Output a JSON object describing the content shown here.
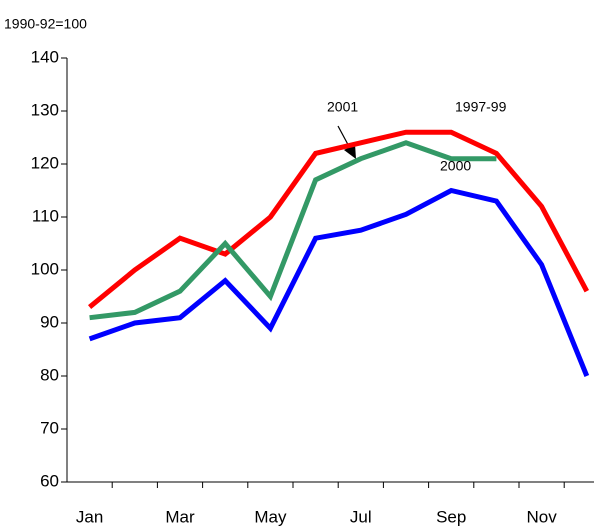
{
  "chart_data": {
    "type": "line",
    "subtitle": "1990-92=100",
    "categories": [
      "Jan",
      null,
      "Mar",
      null,
      "May",
      null,
      "Jul",
      null,
      "Sep",
      null,
      "Nov",
      null
    ],
    "series": [
      {
        "name": "1997-99",
        "color": "#ff0000",
        "values": [
          93,
          100,
          106,
          103,
          110,
          122,
          124,
          126,
          126,
          122,
          112,
          96
        ]
      },
      {
        "name": "2001",
        "color": "#339966",
        "values": [
          91,
          92,
          96,
          105,
          95,
          117,
          121,
          124,
          121,
          121,
          null,
          null
        ]
      },
      {
        "name": "2000",
        "color": "#0000ff",
        "values": [
          87,
          90,
          91,
          98,
          89,
          106,
          107.5,
          110.5,
          115,
          113,
          101,
          80
        ]
      }
    ],
    "ylim": [
      60,
      140
    ],
    "yticks": [
      60,
      70,
      80,
      90,
      100,
      110,
      120,
      130,
      140
    ],
    "grid": false
  }
}
